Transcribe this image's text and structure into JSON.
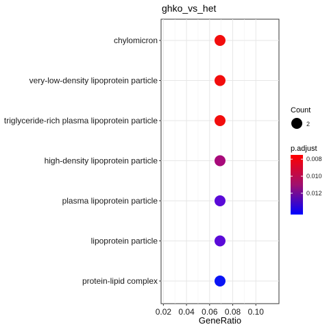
{
  "chart_data": {
    "type": "scatter",
    "title": "ghko_vs_het",
    "xlabel": "GeneRatio",
    "ylabel": "",
    "xlim": [
      0.018,
      0.12
    ],
    "x_ticks": [
      0.02,
      0.04,
      0.06,
      0.08,
      0.1
    ],
    "x_tick_labels": [
      "0.02",
      "0.04",
      "0.06",
      "0.08",
      "0.10"
    ],
    "grid": true,
    "categories": [
      "chylomicron",
      "very-low-density lipoprotein particle",
      "triglyceride-rich plasma lipoprotein particle",
      "high-density lipoprotein particle",
      "plasma lipoprotein particle",
      "lipoprotein particle",
      "protein-lipid complex"
    ],
    "points": [
      {
        "term": "chylomicron",
        "gene_ratio": 0.069,
        "count": 2,
        "p_adjust": 0.0075,
        "color": "#f20d0d"
      },
      {
        "term": "very-low-density lipoprotein particle",
        "gene_ratio": 0.069,
        "count": 2,
        "p_adjust": 0.0075,
        "color": "#f20d0d"
      },
      {
        "term": "triglyceride-rich plasma lipoprotein particle",
        "gene_ratio": 0.069,
        "count": 2,
        "p_adjust": 0.0075,
        "color": "#f20d0d"
      },
      {
        "term": "high-density lipoprotein particle",
        "gene_ratio": 0.069,
        "count": 2,
        "p_adjust": 0.0105,
        "color": "#a80a7a"
      },
      {
        "term": "plasma lipoprotein particle",
        "gene_ratio": 0.069,
        "count": 2,
        "p_adjust": 0.0132,
        "color": "#5a0ad8"
      },
      {
        "term": "lipoprotein particle",
        "gene_ratio": 0.069,
        "count": 2,
        "p_adjust": 0.0132,
        "color": "#5a0ad8"
      },
      {
        "term": "protein-lipid complex",
        "gene_ratio": 0.069,
        "count": 2,
        "p_adjust": 0.0145,
        "color": "#0a14f5"
      }
    ],
    "legend": {
      "placement": "right",
      "size_title": "Count",
      "size_values": [
        "2"
      ],
      "color_title": "p.adjust",
      "color_range": [
        0.0145,
        0.0075
      ],
      "color_ticks": [
        0.008,
        0.01,
        0.012
      ],
      "color_tick_labels": [
        "0.008",
        "0.010",
        "0.012"
      ],
      "color_low": "#0000ff",
      "color_mid": "#a0106e",
      "color_high": "#ff0000"
    }
  }
}
